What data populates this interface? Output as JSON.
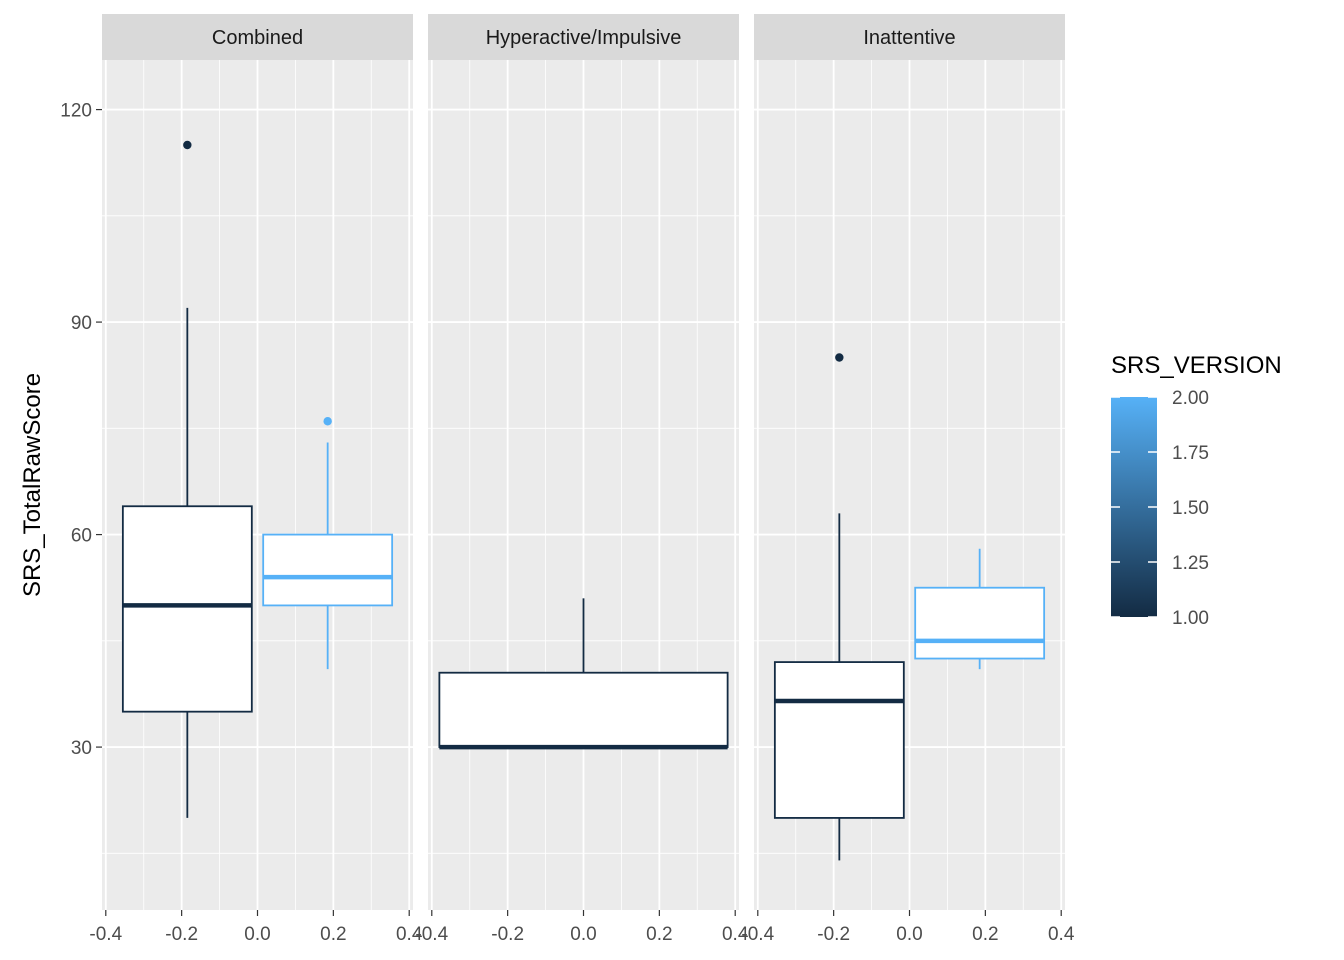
{
  "chart_data": {
    "type": "boxplot",
    "ylabel": "SRS_TotalRawScore",
    "xlabel": "",
    "ylim": [
      7,
      127
    ],
    "y_ticks": [
      30,
      60,
      90,
      120
    ],
    "y_tick_labels": [
      "30",
      "60",
      "90",
      "120"
    ],
    "x_lim": [
      -0.41,
      0.41
    ],
    "x_ticks": [
      -0.4,
      -0.2,
      0.0,
      0.2,
      0.4
    ],
    "x_tick_labels": [
      "-0.4",
      "-0.2",
      "0.0",
      "0.2",
      "0.4"
    ],
    "grid": true,
    "colors": {
      "version_1": "#132B43",
      "version_2": "#56B1F7"
    },
    "legend": {
      "title": "SRS_VERSION",
      "position": "right",
      "min": 1.0,
      "max": 2.0,
      "breaks": [
        1.0,
        1.25,
        1.5,
        1.75,
        2.0
      ],
      "labels": [
        "1.00",
        "1.25",
        "1.50",
        "1.75",
        "2.00"
      ]
    },
    "panels": [
      {
        "label": "Combined",
        "boxes": [
          {
            "x_center": -0.185,
            "width": 0.34,
            "version": 1.0,
            "lower": 20,
            "q1": 35,
            "median": 50,
            "q3": 64,
            "upper": 92,
            "outliers": [
              115
            ]
          },
          {
            "x_center": 0.185,
            "width": 0.34,
            "version": 2.0,
            "lower": 41,
            "q1": 50,
            "median": 54,
            "q3": 60,
            "upper": 73,
            "outliers": [
              76
            ]
          }
        ]
      },
      {
        "label": "Hyperactive/Impulsive",
        "boxes": [
          {
            "x_center": 0.0,
            "width": 0.76,
            "version": 1.0,
            "lower": 30,
            "q1": 30,
            "median": 30,
            "q3": 40.5,
            "upper": 51,
            "outliers": []
          }
        ]
      },
      {
        "label": "Inattentive",
        "boxes": [
          {
            "x_center": -0.185,
            "width": 0.34,
            "version": 1.0,
            "lower": 14,
            "q1": 20,
            "median": 36.5,
            "q3": 42,
            "upper": 63,
            "outliers": [
              85
            ]
          },
          {
            "x_center": 0.185,
            "width": 0.34,
            "version": 2.0,
            "lower": 41,
            "q1": 42.5,
            "median": 45,
            "q3": 52.5,
            "upper": 58,
            "outliers": []
          }
        ]
      }
    ]
  }
}
